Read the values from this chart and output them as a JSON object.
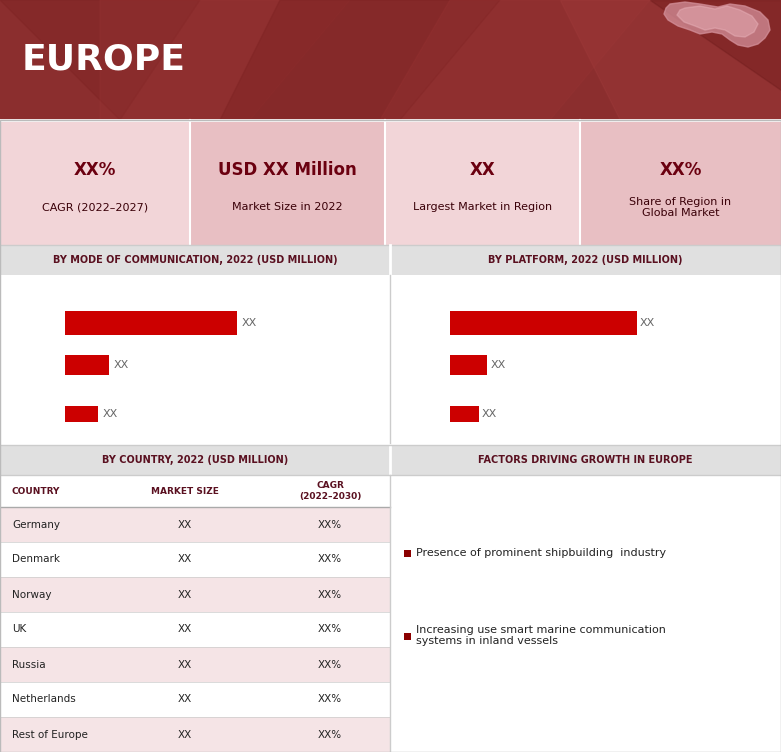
{
  "title": "EUROPE",
  "header_bg": "#8B2E2E",
  "header_text_color": "#FFFFFF",
  "section_header_bg": "#E0E0E0",
  "section_header_text_color": "#5A1020",
  "kpi_bg_light": "#F2D5D8",
  "kpi_bg_dark": "#E8BFC3",
  "bar_color_1": "#CC0000",
  "bar_color_2": "#CC0000",
  "bar_color_3": "#CC0000",
  "table_row_alt": "#F5E4E6",
  "table_row_white": "#FFFFFF",
  "kpi_items": [
    {
      "value": "XX%",
      "label": "CAGR (2022–2027)"
    },
    {
      "value": "USD XX Million",
      "label": "Market Size in 2022"
    },
    {
      "value": "XX",
      "label": "Largest Market in Region"
    },
    {
      "value": "XX%",
      "label": "Share of Region in\nGlobal Market"
    }
  ],
  "comm_bars": [
    0.78,
    0.2,
    0.15
  ],
  "platform_bars": [
    0.85,
    0.17,
    0.13
  ],
  "countries": [
    "Germany",
    "Denmark",
    "Norway",
    "UK",
    "Russia",
    "Netherlands",
    "Rest of Europe"
  ],
  "country_market_size": [
    "XX",
    "XX",
    "XX",
    "XX",
    "XX",
    "XX",
    "XX"
  ],
  "country_cagr": [
    "XX%",
    "XX%",
    "XX%",
    "XX%",
    "XX%",
    "XX%",
    "XX%"
  ],
  "factors": [
    "Presence of prominent shipbuilding  industry",
    "Increasing use smart marine communication\nsystems in inland vessels"
  ],
  "label_xx": "XX",
  "section_comm": "BY MODE OF COMMUNICATION, 2022 (USD MILLION)",
  "section_plat": "BY PLATFORM, 2022 (USD MILLION)",
  "section_country": "BY COUNTRY, 2022 (USD MILLION)",
  "section_factors": "FACTORS DRIVING GROWTH IN EUROPE"
}
